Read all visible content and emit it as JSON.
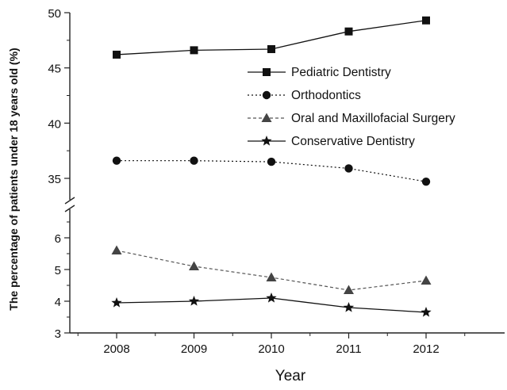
{
  "chart_data": {
    "type": "line",
    "title": "",
    "xlabel": "Year",
    "ylabel": "The percentage of patients under 18 years old (%)",
    "categories": [
      "2008",
      "2009",
      "2010",
      "2011",
      "2012"
    ],
    "y_axis": {
      "broken": true,
      "upper_range": [
        33,
        50
      ],
      "lower_range": [
        3,
        7
      ],
      "upper_ticks": [
        "35",
        "40",
        "45",
        "50"
      ],
      "lower_ticks": [
        "3",
        "4",
        "5",
        "6"
      ]
    },
    "grid": false,
    "legend_position": "top-right",
    "series": [
      {
        "name": "Pediatric Dentistry",
        "marker": "square",
        "line": "solid",
        "values": [
          46.2,
          46.6,
          46.7,
          48.3,
          49.3
        ]
      },
      {
        "name": "Orthodontics",
        "marker": "circle",
        "line": "dotted",
        "values": [
          36.6,
          36.6,
          36.5,
          35.9,
          34.7
        ]
      },
      {
        "name": "Oral and Maxillofacial Surgery",
        "marker": "triangle",
        "line": "dashed",
        "values": [
          5.6,
          5.1,
          4.75,
          4.35,
          4.65
        ]
      },
      {
        "name": "Conservative Dentistry",
        "marker": "star",
        "line": "solid",
        "values": [
          3.95,
          4.0,
          4.1,
          3.8,
          3.65
        ]
      }
    ]
  }
}
